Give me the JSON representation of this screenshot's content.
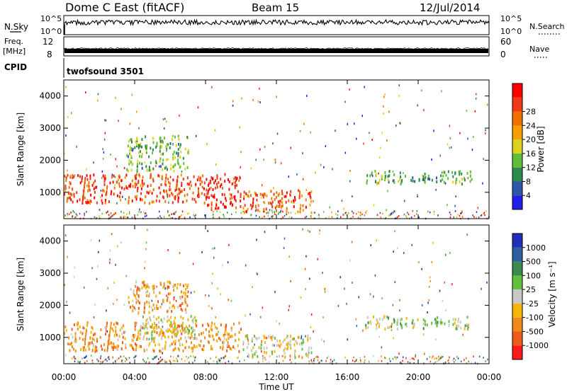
{
  "header": {
    "station": "Dome C East (fitACF)",
    "beam": "Beam 15",
    "date": "12/Jul/2014"
  },
  "param_panels": {
    "nsky_label": "N.Sky",
    "nsearch_label": "N.Search",
    "nsky_ticks_left": [
      "10^5",
      "10^0"
    ],
    "nsky_ticks_right": [
      "10^5",
      "10^0"
    ],
    "freq_label_top": "Freq.",
    "freq_label_unit": "[MHz]",
    "freq_ticks_left": [
      "12",
      "8"
    ],
    "nave_label": "Nave",
    "nave_ticks_right": [
      "60",
      "0"
    ],
    "cpid_label": "CPID",
    "cpid_value": "twofsound 3501"
  },
  "colors": {
    "power": [
      "#1f1fe8",
      "#2f57a8",
      "#2e8a4a",
      "#5fbf3a",
      "#dcd21e",
      "#f5a000",
      "#f07000",
      "#ee3a1a",
      "#ff0000"
    ],
    "velocity": [
      "#1f2fb8",
      "#2f5ea0",
      "#3c8a52",
      "#62c13c",
      "#c8c8c8",
      "#f5b50a",
      "#f08a1c",
      "#ee5a1a",
      "#ff1a1a"
    ]
  },
  "chart_data": [
    {
      "type": "heatmap",
      "name": "power",
      "ylabel": "Slant Range [km]",
      "xlabel": "",
      "x_range_hours": [
        0,
        24
      ],
      "ylim": [
        180,
        4500
      ],
      "y_ticks": [
        "1000",
        "2000",
        "3000",
        "4000"
      ],
      "colorbar": {
        "label": "Power [dB]",
        "ticks": [
          "4",
          "8",
          "12",
          "16",
          "20",
          "24",
          "28"
        ],
        "range": [
          0,
          30
        ]
      },
      "regions": [
        {
          "t0": 0.0,
          "t1": 8.0,
          "r0": 700,
          "r1": 1600,
          "level": 0.85
        },
        {
          "t0": 8.0,
          "t1": 10.0,
          "r0": 500,
          "r1": 1600,
          "level": 0.95
        },
        {
          "t0": 10.0,
          "t1": 14.0,
          "r0": 400,
          "r1": 1100,
          "level": 0.8
        },
        {
          "t0": 3.5,
          "t1": 7.0,
          "r0": 1700,
          "r1": 2800,
          "level": 0.35
        },
        {
          "t0": 17.0,
          "t1": 23.0,
          "r0": 1300,
          "r1": 1700,
          "level": 0.3
        }
      ]
    },
    {
      "type": "heatmap",
      "name": "velocity",
      "ylabel": "Slant Range [km]",
      "xlabel": "Time UT",
      "x_ticks": [
        "00:00",
        "04:00",
        "08:00",
        "12:00",
        "16:00",
        "20:00",
        "00:00"
      ],
      "x_range_hours": [
        0,
        24
      ],
      "ylim": [
        180,
        4500
      ],
      "y_ticks": [
        "1000",
        "2000",
        "3000",
        "4000"
      ],
      "colorbar": {
        "label": "Velocity [m s⁻¹]",
        "ticks": [
          "1000",
          "500",
          "100",
          "25",
          "-25",
          "-100",
          "-500",
          "-1000"
        ],
        "range": [
          1000,
          -1000
        ]
      },
      "regions": [
        {
          "t0": 0.0,
          "t1": 10.0,
          "r0": 600,
          "r1": 1500,
          "level": 0.72
        },
        {
          "t0": 4.0,
          "t1": 7.5,
          "r0": 1000,
          "r1": 1700,
          "level": 0.5
        },
        {
          "t0": 10.0,
          "t1": 14.0,
          "r0": 400,
          "r1": 1100,
          "level": 0.55
        },
        {
          "t0": 3.5,
          "t1": 7.0,
          "r0": 1800,
          "r1": 2800,
          "level": 0.7
        },
        {
          "t0": 17.0,
          "t1": 23.0,
          "r0": 1300,
          "r1": 1700,
          "level": 0.45
        }
      ]
    }
  ]
}
